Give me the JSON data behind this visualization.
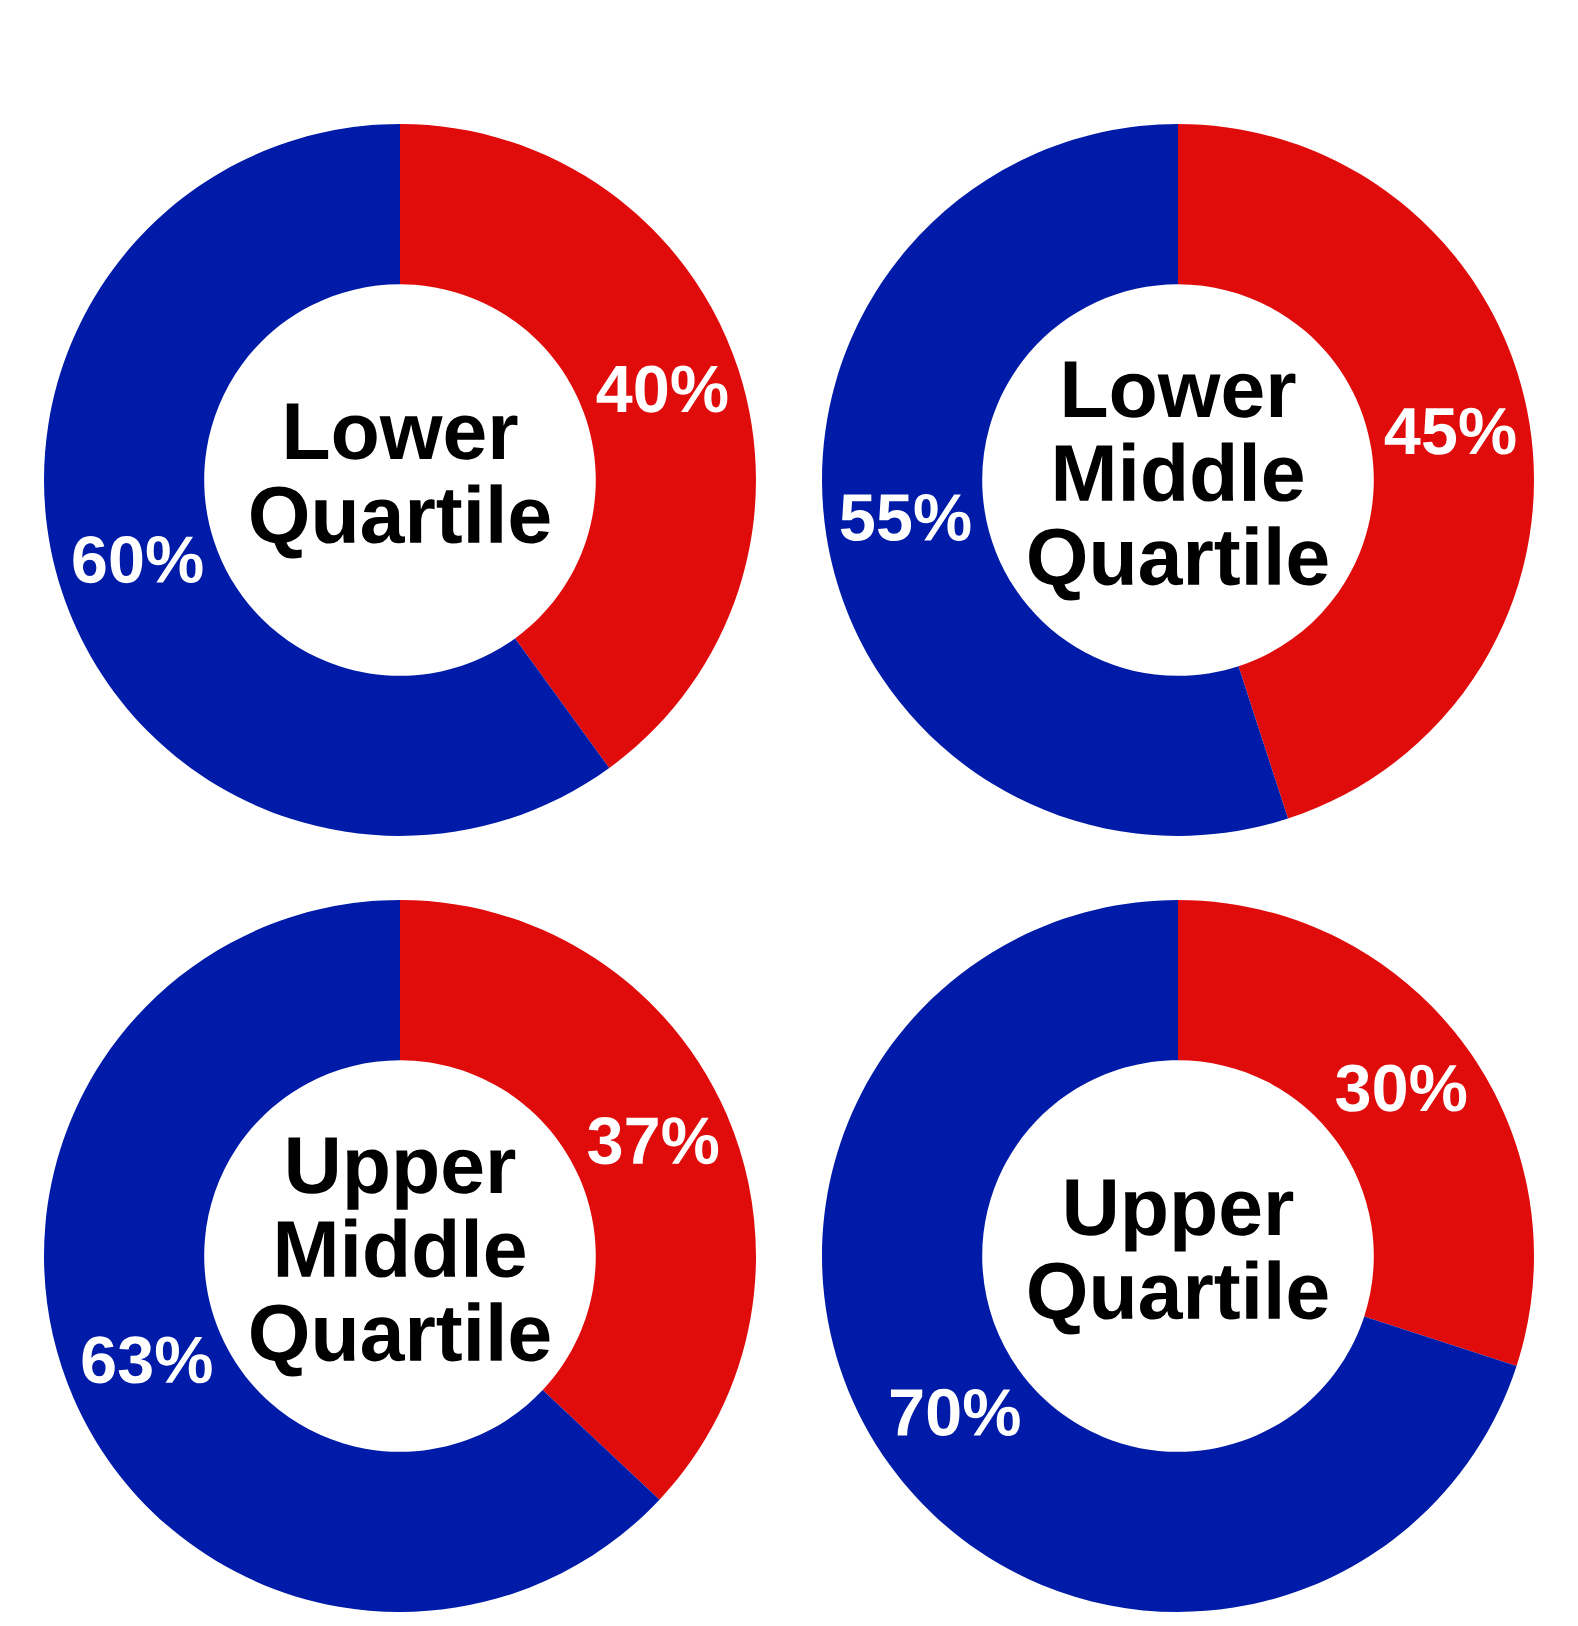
{
  "chart_data": [
    {
      "type": "donut",
      "title": "Lower Quartile",
      "categories": [
        null,
        null
      ],
      "values": [
        40,
        60
      ],
      "colors": [
        "#e00c0c",
        "#001ba8"
      ],
      "value_labels": [
        "40%",
        "60%"
      ]
    },
    {
      "type": "donut",
      "title": "Lower Middle Quartile",
      "categories": [
        null,
        null
      ],
      "values": [
        45,
        55
      ],
      "colors": [
        "#e00c0c",
        "#001ba8"
      ],
      "value_labels": [
        "45%",
        "55%"
      ]
    },
    {
      "type": "donut",
      "title": "Upper Middle Quartile",
      "categories": [
        null,
        null
      ],
      "values": [
        37,
        63
      ],
      "colors": [
        "#e00c0c",
        "#001ba8"
      ],
      "value_labels": [
        "37%",
        "63%"
      ]
    },
    {
      "type": "donut",
      "title": "Upper Quartile",
      "categories": [
        null,
        null
      ],
      "values": [
        30,
        70
      ],
      "colors": [
        "#e00c0c",
        "#001ba8"
      ],
      "value_labels": [
        "30%",
        "70%"
      ]
    }
  ]
}
